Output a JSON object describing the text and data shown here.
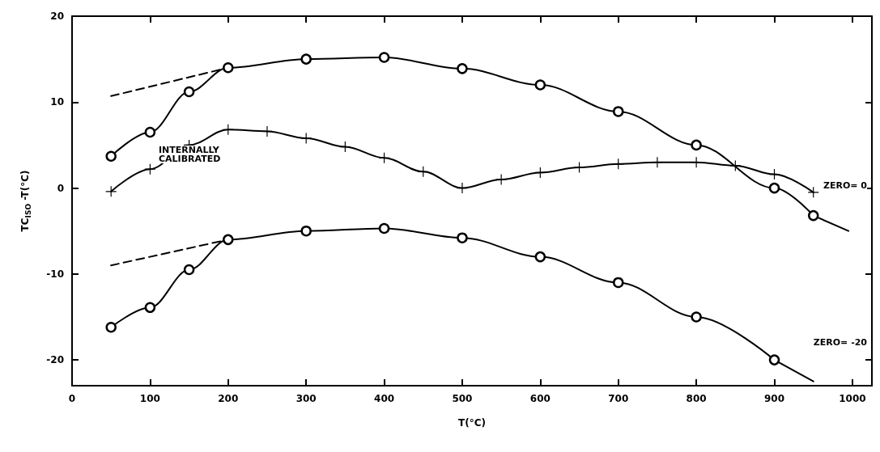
{
  "chart_data": {
    "type": "line",
    "xlabel": "T(°C)",
    "ylabel": "TC$_{ISO}$ -T(°C)",
    "xlim": [
      0,
      1025
    ],
    "xticks": [
      0,
      100,
      200,
      300,
      400,
      500,
      600,
      700,
      800,
      900,
      1000
    ],
    "ylim": [
      -23,
      20
    ],
    "yticks": [
      -20,
      -10,
      0,
      10,
      20
    ],
    "grid": false,
    "series": [
      {
        "color": "#000000",
        "marker": "circle",
        "line_style": "solid",
        "x": [
          50,
          100,
          150,
          200,
          300,
          400,
          500,
          600,
          700,
          800,
          900,
          950
        ],
        "values": [
          3.7,
          6.5,
          11.2,
          14,
          15,
          15.2,
          13.9,
          12,
          8.9,
          5,
          0,
          -3.2
        ]
      },
      {
        "color": "#000000",
        "marker": "none",
        "line_style": "solid",
        "x": [
          950,
          995
        ],
        "values": [
          -3.2,
          -5
        ]
      },
      {
        "color": "#000000",
        "marker": "none",
        "line_style": "dashed",
        "x": [
          50,
          200
        ],
        "values": [
          10.7,
          14
        ]
      },
      {
        "color": "#000000",
        "marker": "cross",
        "line_style": "solid",
        "x": [
          50,
          100,
          150,
          200,
          250,
          300,
          350,
          400,
          450,
          500,
          550,
          600,
          650,
          700,
          750,
          800,
          850,
          900,
          950
        ],
        "values": [
          -0.4,
          2.2,
          5,
          6.8,
          6.6,
          5.8,
          4.8,
          3.5,
          1.9,
          0,
          1,
          1.8,
          2.4,
          2.8,
          3,
          3,
          2.6,
          1.6,
          -0.5
        ]
      },
      {
        "color": "#000000",
        "marker": "circle",
        "line_style": "solid",
        "x": [
          50,
          100,
          150,
          200,
          300,
          400,
          500,
          600,
          700,
          800,
          900
        ],
        "values": [
          -16.2,
          -13.9,
          -9.5,
          -6,
          -5,
          -4.7,
          -5.8,
          -8,
          -11,
          -15,
          -20
        ]
      },
      {
        "color": "#000000",
        "marker": "none",
        "line_style": "solid",
        "x": [
          900,
          950
        ],
        "values": [
          -20,
          -22.5
        ]
      },
      {
        "color": "#000000",
        "marker": "none",
        "line_style": "dashed",
        "x": [
          50,
          200
        ],
        "values": [
          -9,
          -6
        ]
      }
    ],
    "annotations": [
      "INTERNALLY\nCALIBRATED",
      "ZERO= 0",
      "ZERO= -20"
    ]
  }
}
